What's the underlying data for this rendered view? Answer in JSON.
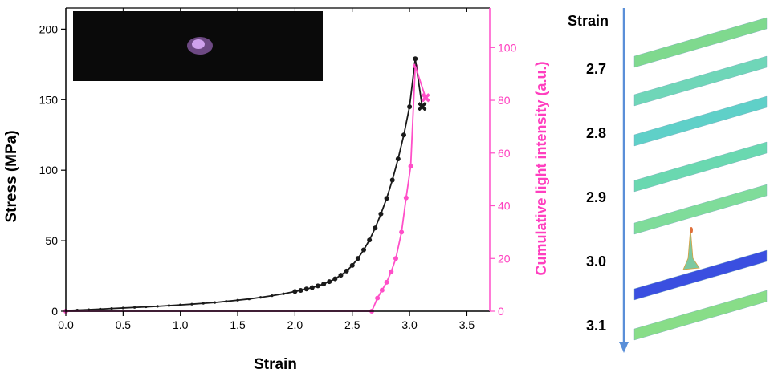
{
  "chart_data": {
    "type": "line",
    "xlabel": "Strain",
    "ylabel": "Stress (MPa)",
    "y2label": "Cumulative light intensity (a.u.)",
    "xlim": [
      0.0,
      3.7
    ],
    "ylim": [
      0,
      215
    ],
    "y2lim": [
      0,
      115
    ],
    "x_ticks": [
      "0.0",
      "0.5",
      "1.0",
      "1.5",
      "2.0",
      "2.5",
      "3.0",
      "3.5"
    ],
    "y_ticks": [
      "0",
      "50",
      "100",
      "150",
      "200"
    ],
    "y2_ticks": [
      "0",
      "20",
      "40",
      "60",
      "80",
      "100"
    ],
    "grid": false,
    "series": [
      {
        "axis": "left",
        "color": "#1a1a1a",
        "marker": "circle",
        "x": [
          0.0,
          0.1,
          0.2,
          0.3,
          0.4,
          0.5,
          0.6,
          0.7,
          0.8,
          0.9,
          1.0,
          1.1,
          1.2,
          1.3,
          1.4,
          1.5,
          1.6,
          1.7,
          1.8,
          1.9,
          2.0,
          2.05,
          2.1,
          2.15,
          2.2,
          2.25,
          2.3,
          2.35,
          2.4,
          2.45,
          2.5,
          2.55,
          2.6,
          2.65,
          2.7,
          2.75,
          2.8,
          2.85,
          2.9,
          2.95,
          3.0,
          3.05
        ],
        "values": [
          0.5,
          0.8,
          1.1,
          1.5,
          1.9,
          2.3,
          2.7,
          3.1,
          3.5,
          4.0,
          4.5,
          5.0,
          5.6,
          6.2,
          7.0,
          7.8,
          8.7,
          9.8,
          11.0,
          12.4,
          14.0,
          14.8,
          15.8,
          16.8,
          18.0,
          19.3,
          21.0,
          23.0,
          25.5,
          28.5,
          32.5,
          37.5,
          43.5,
          50.5,
          59.0,
          69.0,
          80.0,
          93.0,
          108.0,
          125.0,
          145.0,
          179.0
        ]
      },
      {
        "axis": "right",
        "color": "#ff4fc8",
        "marker": "circle",
        "x": [
          0.0,
          2.67,
          2.72,
          2.76,
          2.8,
          2.84,
          2.88,
          2.93,
          2.97,
          3.01,
          3.05
        ],
        "values": [
          0,
          0,
          5,
          8,
          11,
          15,
          20,
          30,
          43,
          55,
          93
        ]
      }
    ],
    "failure_markers": [
      {
        "axis": "left",
        "x": 3.11,
        "value": 145,
        "color": "#1a1a1a",
        "symbol": "✖"
      },
      {
        "axis": "right",
        "x": 3.14,
        "value": 81,
        "color": "#ff4fc8",
        "symbol": "✖"
      }
    ],
    "inset": {
      "type": "photo",
      "description": "dark frame with purple glow",
      "background": "#0a0a0a",
      "glow_color": "#b06be0"
    }
  },
  "side_panel": {
    "header": "Strain",
    "labels": [
      "2.7",
      "2.8",
      "2.9",
      "3.0",
      "3.1"
    ],
    "arrow_color": "#5a8fd8",
    "strip_colors": [
      "#7fd98e",
      "#6fd6b8",
      "#5fd0c8",
      "#6ad8b0",
      "#7fdc9a",
      "#3a4fe0",
      "#88dd88"
    ]
  }
}
